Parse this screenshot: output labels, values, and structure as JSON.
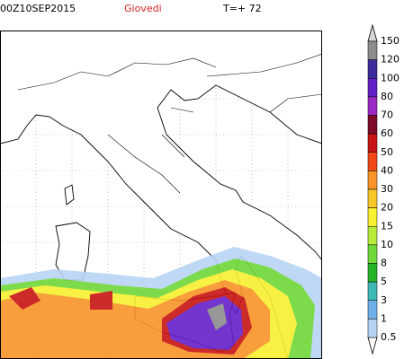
{
  "header": {
    "date": "00Z10SEP2015",
    "day": "Giovedi",
    "lead": "T=+ 72"
  },
  "legend": {
    "levels": [
      "150",
      "120",
      "100",
      "80",
      "70",
      "60",
      "50",
      "40",
      "30",
      "20",
      "15",
      "10",
      "8",
      "5",
      "3",
      "1",
      "0.5"
    ],
    "colors": [
      "#8c8c8c",
      "#3c2c9c",
      "#6420c8",
      "#9c28c4",
      "#7c0c28",
      "#c81414",
      "#f04818",
      "#f89428",
      "#f8c828",
      "#f8f030",
      "#b8ec38",
      "#70d838",
      "#28b428",
      "#40b8b8",
      "#70b0e8",
      "#b8d4f4"
    ]
  }
}
